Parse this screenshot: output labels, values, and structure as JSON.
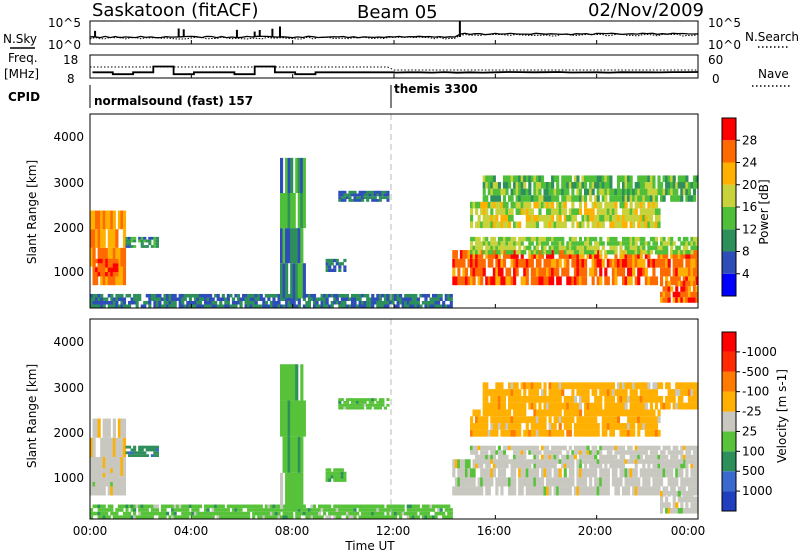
{
  "header": {
    "station": "Saskatoon (fitACF)",
    "beam": "Beam 05",
    "date": "02/Nov/2009"
  },
  "noise_panel": {
    "left_label": "N.Sky",
    "right_label": "N.Search",
    "left_ticks": [
      "10^5",
      "10^0"
    ],
    "right_ticks": [
      "10^5",
      "10^0"
    ]
  },
  "freq_panel": {
    "left_label_top": "Freq.",
    "left_label_bottom": "[MHz]",
    "right_label": "Nave",
    "left_ticks": [
      "18",
      "8"
    ],
    "right_ticks": [
      "60",
      "0"
    ]
  },
  "cpid": {
    "label": "CPID",
    "programs": [
      {
        "name": "normalsound (fast) 157",
        "start_hour": 0
      },
      {
        "name": "themis 3300",
        "start_hour": 12
      }
    ]
  },
  "x_axis": {
    "title": "Time UT",
    "ticks": [
      "00:00",
      "04:00",
      "08:00",
      "12:00",
      "16:00",
      "20:00",
      "00:00"
    ],
    "tick_hours": [
      0,
      4,
      8,
      12,
      16,
      20,
      24
    ]
  },
  "power_panel": {
    "ylabel": "Slant Range [km]",
    "yticks": [
      1000,
      2000,
      3000,
      4000
    ],
    "colorbar_title": "Power [dB]",
    "colorbar_ticks": [
      "4",
      "8",
      "12",
      "16",
      "20",
      "24",
      "28"
    ],
    "colors": [
      "#0000ff",
      "#2e4db8",
      "#2d8f5a",
      "#4fbf3a",
      "#c8d23a",
      "#ffb000",
      "#ff6a00",
      "#ff0000"
    ]
  },
  "velocity_panel": {
    "ylabel": "Slant Range [km]",
    "yticks": [
      1000,
      2000,
      3000,
      4000
    ],
    "colorbar_title": "Velocity [m s-1]",
    "colorbar_ticks": [
      "1000",
      "500",
      "100",
      "25",
      "-25",
      "-100",
      "-500",
      "-1000"
    ],
    "colors": [
      "#1f3fbf",
      "#3a6ad0",
      "#2d8f5a",
      "#57c23a",
      "#c8c8c0",
      "#ffb000",
      "#ff7a00",
      "#ff2a00",
      "#ff0000"
    ]
  },
  "chart_data": {
    "type": "heatmap",
    "title": "Saskatoon (fitACF) Beam 05 02/Nov/2009",
    "xlabel": "Time UT",
    "ylabel": "Slant Range [km]",
    "xlim_hours": [
      0,
      24
    ],
    "ylim_km": [
      180,
      4600
    ],
    "panels": [
      "Power [dB]",
      "Velocity [m s-1]"
    ],
    "echo_regions": [
      {
        "t0": 0.0,
        "t1": 1.4,
        "r0": 700,
        "r1": 2400,
        "power": 24,
        "velocity": -25
      },
      {
        "t0": 0.1,
        "t1": 1.1,
        "r0": 900,
        "r1": 1300,
        "power": 28,
        "velocity": -25
      },
      {
        "t0": 1.4,
        "t1": 2.7,
        "r0": 1550,
        "r1": 1800,
        "power": 10,
        "velocity": 100
      },
      {
        "t0": 0.0,
        "t1": 14.3,
        "r0": 180,
        "r1": 500,
        "power": 8,
        "velocity": 25
      },
      {
        "t0": 7.5,
        "t1": 8.5,
        "r0": 400,
        "r1": 3600,
        "power": 10,
        "velocity": 25
      },
      {
        "t0": 9.3,
        "t1": 10.1,
        "r0": 1000,
        "r1": 1300,
        "power": 8,
        "velocity": 25
      },
      {
        "t0": 9.8,
        "t1": 11.8,
        "r0": 2600,
        "r1": 2850,
        "power": 8,
        "velocity": 25
      },
      {
        "t0": 14.3,
        "t1": 24.0,
        "r0": 700,
        "r1": 1500,
        "power": 26,
        "velocity": -25
      },
      {
        "t0": 15.0,
        "t1": 24.0,
        "r0": 1400,
        "r1": 1800,
        "power": 16,
        "velocity": -25
      },
      {
        "t0": 15.0,
        "t1": 22.5,
        "r0": 2000,
        "r1": 2600,
        "power": 18,
        "velocity": -100
      },
      {
        "t0": 15.5,
        "t1": 24.0,
        "r0": 2600,
        "r1": 3200,
        "power": 14,
        "velocity": -100
      },
      {
        "t0": 22.5,
        "t1": 24.0,
        "r0": 300,
        "r1": 800,
        "power": 26,
        "velocity": -25
      }
    ],
    "series": [
      {
        "name": "N.Sky",
        "values": [
          1,
          1,
          1,
          1,
          1,
          1,
          1,
          1,
          1,
          1,
          1,
          1,
          1,
          1,
          1,
          1,
          1,
          1,
          1,
          1,
          1,
          1,
          1,
          1,
          1
        ]
      },
      {
        "name": "Freq.",
        "values": [
          10.5,
          10.5,
          10.5,
          13.5,
          10.5,
          10.5,
          10.5,
          10.5,
          13.5,
          10.5,
          10.5,
          10.5,
          10.5,
          10.5,
          10.5,
          10.5,
          10.5,
          10.5,
          10.5,
          10.5,
          10.5,
          10.5,
          10.5,
          10.5,
          10.5
        ]
      }
    ]
  }
}
